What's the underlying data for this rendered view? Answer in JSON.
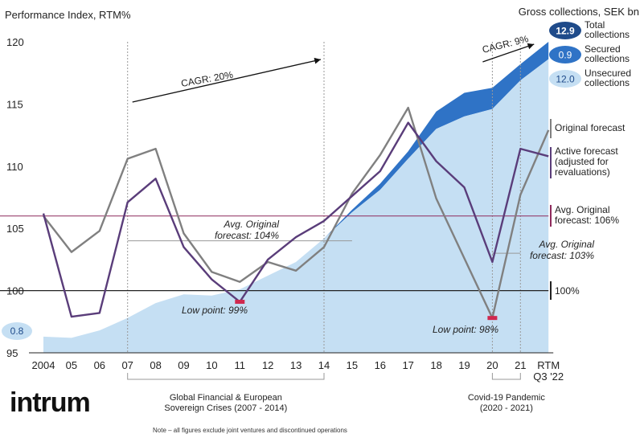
{
  "chart_data": {
    "type": "line",
    "title": "Performance Index, RTM%",
    "secondary_title": "Gross collections, SEK bn",
    "x": [
      "2004",
      "05",
      "06",
      "07",
      "08",
      "09",
      "10",
      "11",
      "12",
      "13",
      "14",
      "15",
      "16",
      "17",
      "18",
      "19",
      "20",
      "21",
      "RTM Q3 '22"
    ],
    "x_last_label_lines": [
      "RTM",
      "Q3 '22"
    ],
    "ylim": [
      95,
      120
    ],
    "yticks": [
      95,
      100,
      105,
      110,
      115,
      120
    ],
    "xlabel": "",
    "ylabel": "",
    "grid": false,
    "series": [
      {
        "name": "Original forecast",
        "kind": "line",
        "color": "#808080",
        "values": [
          106.0,
          103.1,
          104.8,
          110.6,
          111.4,
          104.6,
          101.5,
          100.7,
          102.3,
          101.6,
          103.5,
          107.8,
          110.9,
          114.7,
          107.4,
          102.6,
          97.8,
          107.7,
          112.9
        ]
      },
      {
        "name": "Active forecast (adjusted for revaluations)",
        "kind": "line",
        "color": "#5a3d7a",
        "values": [
          106.2,
          97.9,
          98.2,
          107.1,
          109.0,
          103.5,
          100.9,
          99.1,
          102.5,
          104.3,
          105.6,
          107.6,
          109.6,
          113.5,
          110.4,
          108.3,
          102.3,
          111.4,
          110.8
        ]
      },
      {
        "name": "Unsecured collections",
        "kind": "area",
        "color": "#c5dff3",
        "values": [
          96.3,
          96.2,
          96.8,
          97.8,
          99.0,
          99.7,
          99.6,
          100.1,
          101.2,
          102.3,
          104.2,
          106.3,
          108.1,
          110.6,
          113.0,
          114.0,
          114.6,
          116.9,
          118.6
        ]
      },
      {
        "name": "Secured collections",
        "kind": "area",
        "color": "#2f73c6",
        "values": [
          96.3,
          96.2,
          96.8,
          97.8,
          99.0,
          99.7,
          99.6,
          100.1,
          101.2,
          102.3,
          104.2,
          106.5,
          108.6,
          111.2,
          114.4,
          115.9,
          116.3,
          118.2,
          120.0
        ]
      }
    ],
    "collections_legend": [
      {
        "value": "12.9",
        "label_lines": [
          "Total",
          "collections"
        ],
        "pill_color": "#1f4b8a",
        "text_color": "#ffffff"
      },
      {
        "value": "0.9",
        "label_lines": [
          "Secured",
          "collections"
        ],
        "pill_color": "#2f73c6",
        "text_color": "#ffffff"
      },
      {
        "value": "12.0",
        "label_lines": [
          "Unsecured",
          "collections"
        ],
        "pill_color": "#c5dff3",
        "text_color": "#1f4b8a"
      }
    ],
    "left_value_label": "0.8",
    "reference_lines": [
      {
        "label_lines": [
          "100%"
        ],
        "y": 100,
        "color": "#222222"
      },
      {
        "label_lines": [
          "Avg. Original",
          "forecast: 106%"
        ],
        "y": 106,
        "color": "#8e2a5c"
      }
    ],
    "segment_averages": [
      {
        "label_lines": [
          "Avg. Original",
          "forecast: 104%"
        ],
        "y": 104,
        "x_from": 3,
        "x_to": 11
      },
      {
        "label_lines": [
          "Avg. Original",
          "forecast: 103%"
        ],
        "y": 103,
        "x_from": 16,
        "x_to": 17
      }
    ],
    "low_points": [
      {
        "label": "Low point: 99%",
        "x": 7,
        "y": 99.1
      },
      {
        "label": "Low point: 98%",
        "x": 16,
        "y": 97.8
      }
    ],
    "cagr": [
      {
        "label": "CAGR: 20%",
        "x_from": 3,
        "x_to": 10
      },
      {
        "label": "CAGR: 9%",
        "x_from": 16,
        "x_to": 17.4
      }
    ],
    "series_legend": [
      {
        "label_lines": [
          "Original forecast"
        ],
        "color": "#808080"
      },
      {
        "label_lines": [
          "Active forecast",
          "(adjusted for",
          "revaluations)"
        ],
        "color": "#5a3d7a"
      }
    ],
    "periods": [
      {
        "label_lines": [
          "Global Financial & European",
          "Sovereign Crises (2007 - 2014)"
        ],
        "x_from": 3,
        "x_to": 10
      },
      {
        "label_lines": [
          "Covid-19 Pandemic",
          "(2020 - 2021)"
        ],
        "x_from": 16,
        "x_to": 17
      }
    ],
    "logo": "intrum",
    "note": "Note – all figures exclude joint ventures and discontinued operations"
  }
}
